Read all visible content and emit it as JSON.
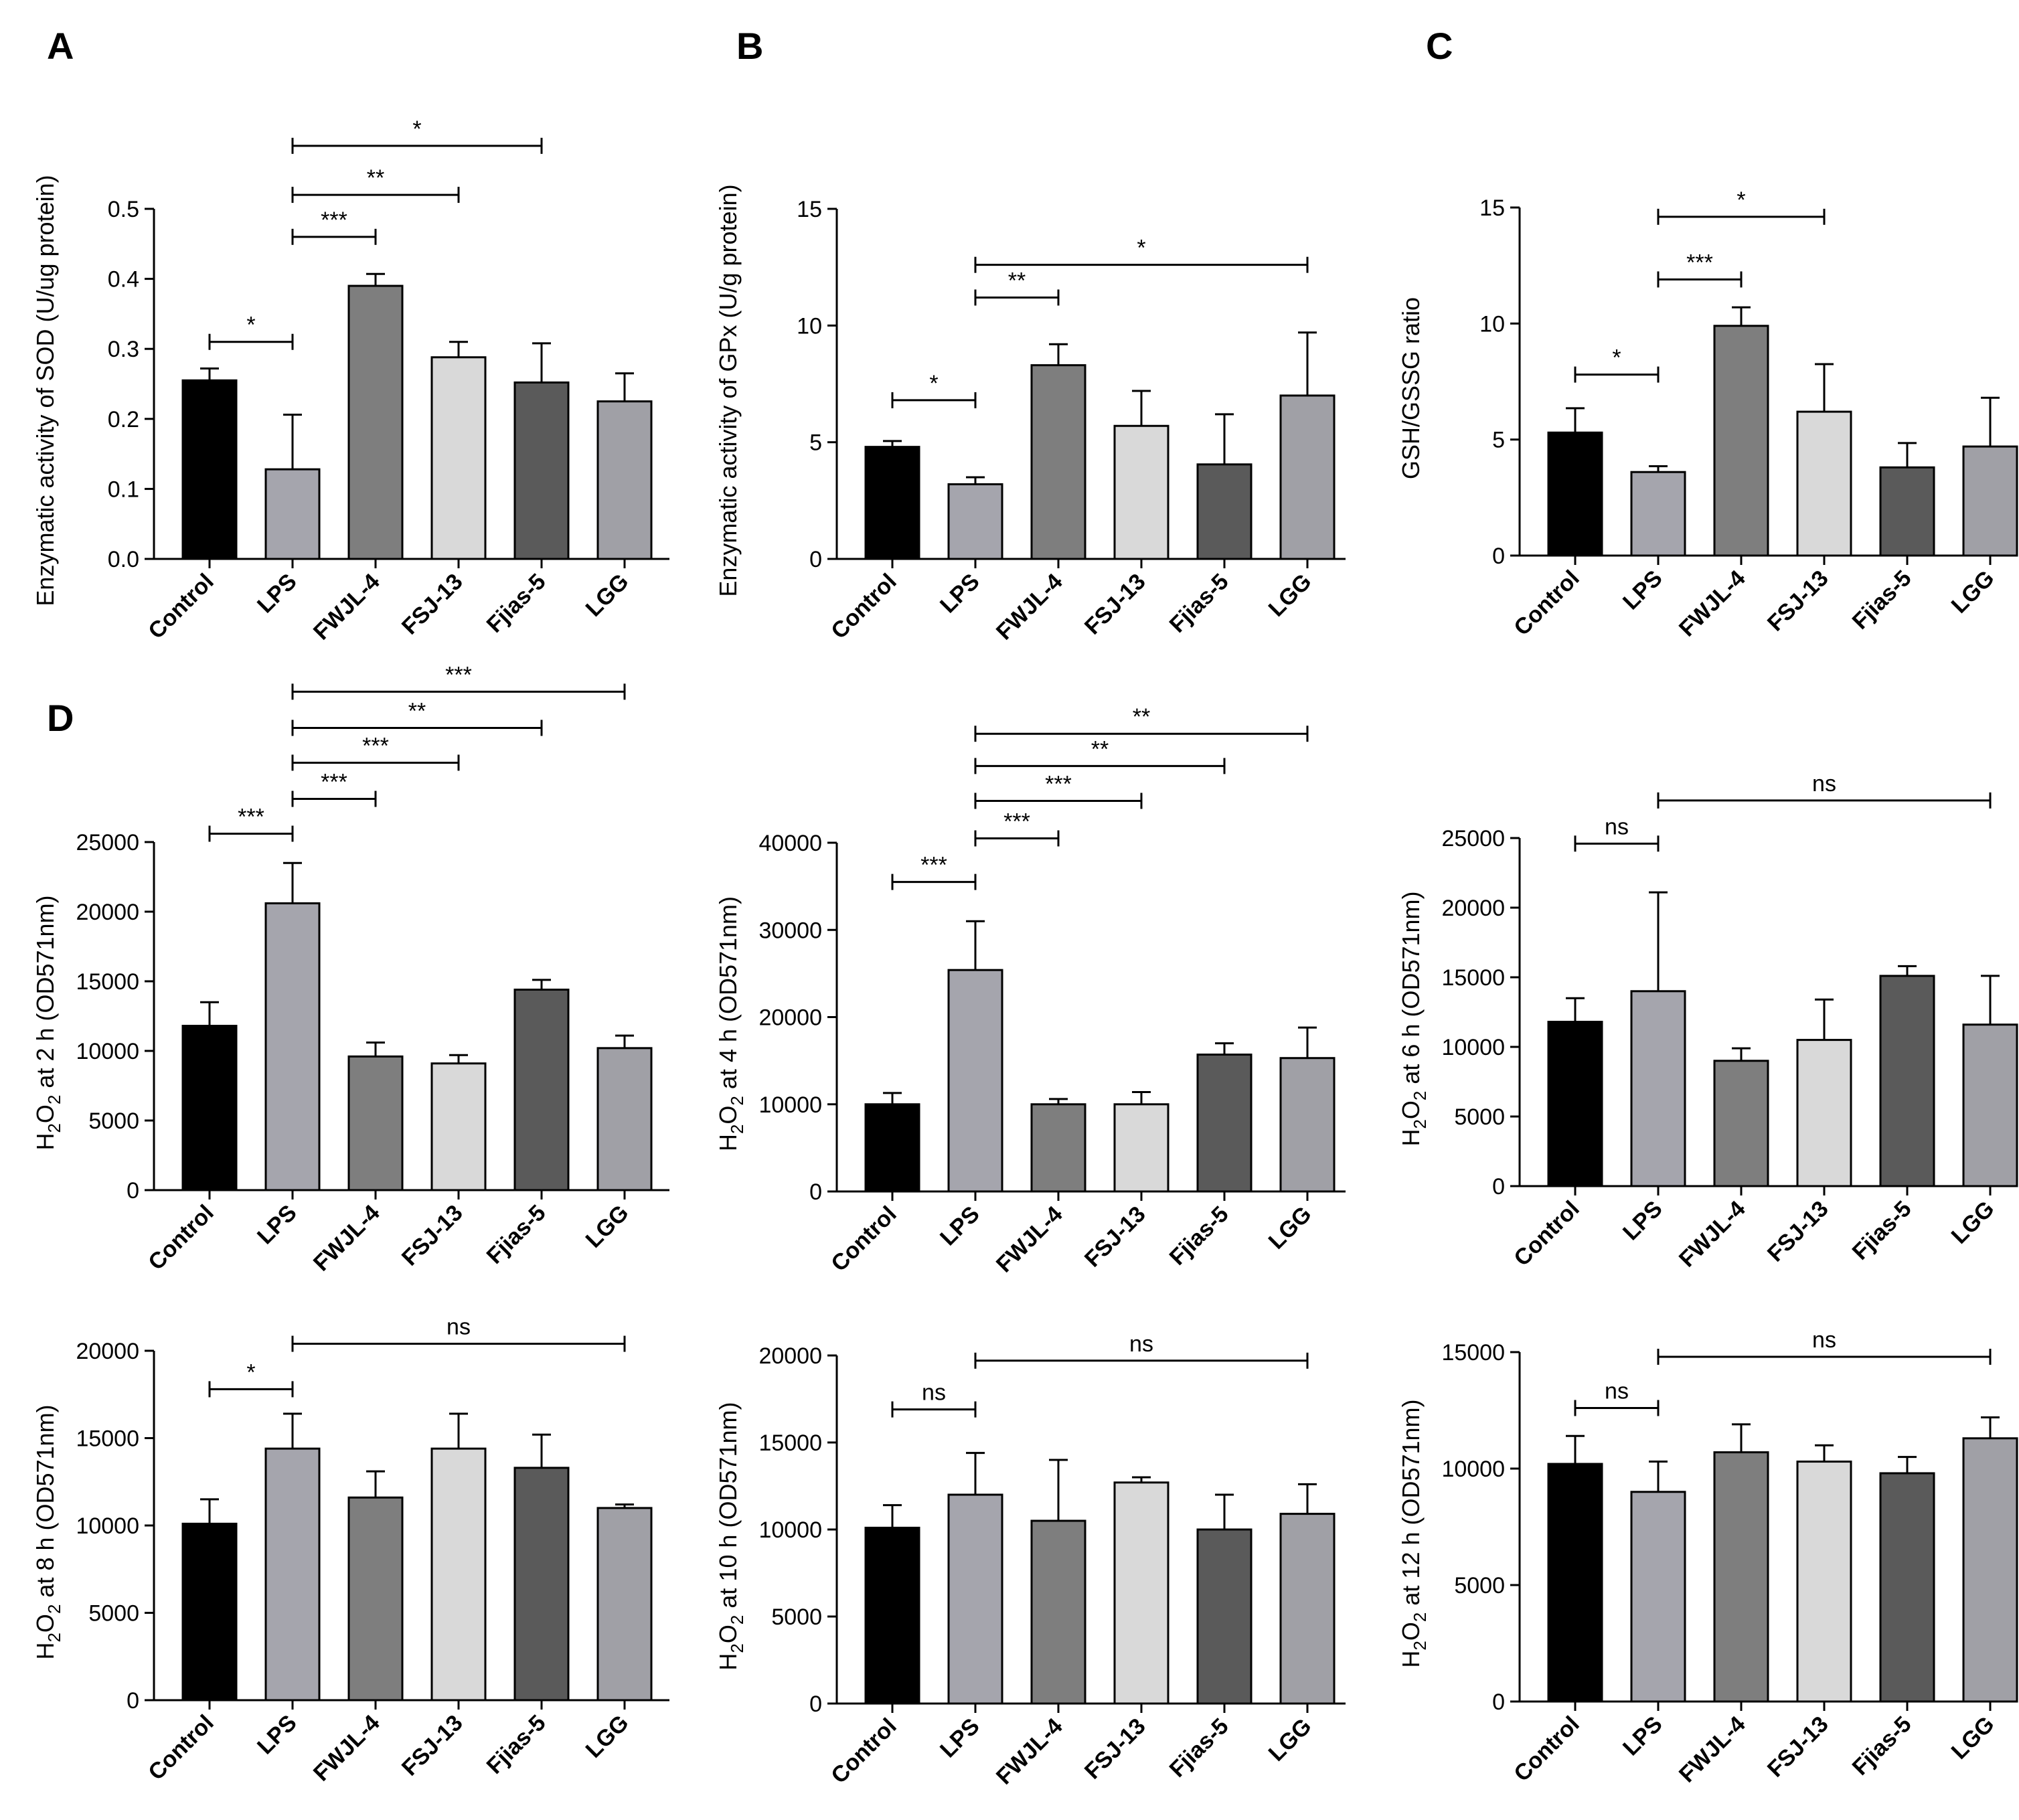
{
  "figure": {
    "panel_letters": [
      "A",
      "B",
      "C",
      "D"
    ],
    "colors": [
      "#000000",
      "#a5a5ad",
      "#7e7e7e",
      "#d9d9d9",
      "#5a5a5a",
      "#a0a0a6"
    ]
  },
  "chart_data": [
    {
      "type": "bar",
      "panel": "A",
      "ylabel": "Enzymatic activity of SOD (U/ug protein)",
      "ylim": [
        0,
        0.5
      ],
      "yticks": [
        "0.0",
        "0.1",
        "0.2",
        "0.3",
        "0.4",
        "0.5"
      ],
      "categories": [
        "Control",
        "LPS",
        "FWJL-4",
        "FSJ-13",
        "Fjias-5",
        "LGG"
      ],
      "values": [
        0.255,
        0.128,
        0.39,
        0.288,
        0.252,
        0.225
      ],
      "errors": [
        0.017,
        0.078,
        0.017,
        0.022,
        0.056,
        0.04
      ],
      "significance": [
        {
          "from": 0,
          "to": 1,
          "label": "*",
          "y": 0.31
        },
        {
          "from": 1,
          "to": 2,
          "label": "***",
          "y": 0.46
        },
        {
          "from": 1,
          "to": 3,
          "label": "**",
          "y": 0.52
        },
        {
          "from": 1,
          "to": 4,
          "label": "*",
          "y": 0.59
        }
      ]
    },
    {
      "type": "bar",
      "panel": "B",
      "ylabel": "Enzymatic activity of GPx (U/g protein)",
      "ylim": [
        0,
        15
      ],
      "yticks": [
        "0",
        "5",
        "10",
        "15"
      ],
      "categories": [
        "Control",
        "LPS",
        "FWJL-4",
        "FSJ-13",
        "Fjias-5",
        "LGG"
      ],
      "values": [
        4.8,
        3.2,
        8.3,
        5.7,
        4.05,
        7.0
      ],
      "errors": [
        0.25,
        0.3,
        0.9,
        1.5,
        2.15,
        2.7
      ],
      "significance": [
        {
          "from": 0,
          "to": 1,
          "label": "*",
          "y": 6.8
        },
        {
          "from": 1,
          "to": 2,
          "label": "**",
          "y": 11.2
        },
        {
          "from": 1,
          "to": 5,
          "label": "*",
          "y": 12.6
        }
      ]
    },
    {
      "type": "bar",
      "panel": "C",
      "ylabel": "GSH/GSSG ratio",
      "ylim": [
        0,
        15
      ],
      "yticks": [
        "0",
        "5",
        "10",
        "15"
      ],
      "categories": [
        "Control",
        "LPS",
        "FWJL-4",
        "FSJ-13",
        "Fjias-5",
        "LGG"
      ],
      "values": [
        5.3,
        3.6,
        9.9,
        6.2,
        3.8,
        4.7
      ],
      "errors": [
        1.05,
        0.25,
        0.8,
        2.05,
        1.05,
        2.1
      ],
      "significance": [
        {
          "from": 0,
          "to": 1,
          "label": "*",
          "y": 7.8
        },
        {
          "from": 1,
          "to": 2,
          "label": "***",
          "y": 11.9
        },
        {
          "from": 1,
          "to": 3,
          "label": "*",
          "y": 14.6
        }
      ]
    },
    {
      "type": "bar",
      "panel": "D1",
      "ylabel_prefix": "H",
      "ylabel_sub1": "2",
      "ylabel_mid": "O",
      "ylabel_sub2": "2",
      "ylabel_suffix": " at 2 h (OD571nm)",
      "ylim": [
        0,
        25000
      ],
      "yticks": [
        "0",
        "5000",
        "10000",
        "15000",
        "20000",
        "25000"
      ],
      "categories": [
        "Control",
        "LPS",
        "FWJL-4",
        "FSJ-13",
        "Fjias-5",
        "LGG"
      ],
      "values": [
        11800,
        20600,
        9600,
        9100,
        14400,
        10200
      ],
      "errors": [
        1700,
        2900,
        1000,
        600,
        700,
        900
      ],
      "significance": [
        {
          "from": 0,
          "to": 1,
          "label": "***",
          "y": 25600
        },
        {
          "from": 1,
          "to": 2,
          "label": "***",
          "y": 28100
        },
        {
          "from": 1,
          "to": 3,
          "label": "***",
          "y": 30700
        },
        {
          "from": 1,
          "to": 4,
          "label": "**",
          "y": 33200
        },
        {
          "from": 1,
          "to": 5,
          "label": "***",
          "y": 35800
        }
      ]
    },
    {
      "type": "bar",
      "panel": "D2",
      "ylabel_prefix": "H",
      "ylabel_sub1": "2",
      "ylabel_mid": "O",
      "ylabel_sub2": "2",
      "ylabel_suffix": " at 4 h (OD571nm)",
      "ylim": [
        0,
        40000
      ],
      "yticks": [
        "0",
        "10000",
        "20000",
        "30000",
        "40000"
      ],
      "categories": [
        "Control",
        "LPS",
        "FWJL-4",
        "FSJ-13",
        "Fjias-5",
        "LGG"
      ],
      "values": [
        10000,
        25400,
        10000,
        10000,
        15700,
        15300
      ],
      "errors": [
        1300,
        5600,
        600,
        1400,
        1300,
        3500
      ],
      "significance": [
        {
          "from": 0,
          "to": 1,
          "label": "***",
          "y": 35500
        },
        {
          "from": 1,
          "to": 2,
          "label": "***",
          "y": 40500
        },
        {
          "from": 1,
          "to": 3,
          "label": "***",
          "y": 44800
        },
        {
          "from": 1,
          "to": 4,
          "label": "**",
          "y": 48800
        },
        {
          "from": 1,
          "to": 5,
          "label": "**",
          "y": 52500
        }
      ]
    },
    {
      "type": "bar",
      "panel": "D3",
      "ylabel_prefix": "H",
      "ylabel_sub1": "2",
      "ylabel_mid": "O",
      "ylabel_sub2": "2",
      "ylabel_suffix": " at 6 h (OD571nm)",
      "ylim": [
        0,
        25000
      ],
      "yticks": [
        "0",
        "5000",
        "10000",
        "15000",
        "20000",
        "25000"
      ],
      "categories": [
        "Control",
        "LPS",
        "FWJL-4",
        "FSJ-13",
        "Fjias-5",
        "LGG"
      ],
      "values": [
        11800,
        14000,
        9000,
        10500,
        15100,
        11600
      ],
      "errors": [
        1700,
        7100,
        900,
        2900,
        700,
        3500
      ],
      "significance": [
        {
          "from": 0,
          "to": 1,
          "label": "ns",
          "y": 24600
        },
        {
          "from": 1,
          "to": 5,
          "label": "ns",
          "y": 27700
        }
      ]
    },
    {
      "type": "bar",
      "panel": "D4",
      "ylabel_prefix": "H",
      "ylabel_sub1": "2",
      "ylabel_mid": "O",
      "ylabel_sub2": "2",
      "ylabel_suffix": " at 8 h (OD571nm)",
      "ylim": [
        0,
        20000
      ],
      "yticks": [
        "0",
        "5000",
        "10000",
        "15000",
        "20000"
      ],
      "categories": [
        "Control",
        "LPS",
        "FWJL-4",
        "FSJ-13",
        "Fjias-5",
        "LGG"
      ],
      "values": [
        10100,
        14400,
        11600,
        14400,
        13300,
        11000
      ],
      "errors": [
        1400,
        2000,
        1500,
        2000,
        1900,
        200
      ],
      "significance": [
        {
          "from": 0,
          "to": 1,
          "label": "*",
          "y": 17800
        },
        {
          "from": 1,
          "to": 5,
          "label": "ns",
          "y": 20400
        }
      ]
    },
    {
      "type": "bar",
      "panel": "D5",
      "ylabel_prefix": "H",
      "ylabel_sub1": "2",
      "ylabel_mid": "O",
      "ylabel_sub2": "2",
      "ylabel_suffix": " at 10 h (OD571nm)",
      "ylim": [
        0,
        20000
      ],
      "yticks": [
        "0",
        "5000",
        "10000",
        "15000",
        "20000"
      ],
      "categories": [
        "Control",
        "LPS",
        "FWJL-4",
        "FSJ-13",
        "Fjias-5",
        "LGG"
      ],
      "values": [
        10100,
        12000,
        10500,
        12700,
        10000,
        10900
      ],
      "errors": [
        1300,
        2400,
        3500,
        300,
        2000,
        1700
      ],
      "significance": [
        {
          "from": 0,
          "to": 1,
          "label": "ns",
          "y": 16900
        },
        {
          "from": 1,
          "to": 5,
          "label": "ns",
          "y": 19700
        }
      ]
    },
    {
      "type": "bar",
      "panel": "D6",
      "ylabel_prefix": "H",
      "ylabel_sub1": "2",
      "ylabel_mid": "O",
      "ylabel_sub2": "2",
      "ylabel_suffix": " at 12 h (OD571nm)",
      "ylim": [
        0,
        15000
      ],
      "yticks": [
        "0",
        "5000",
        "10000",
        "15000"
      ],
      "categories": [
        "Control",
        "LPS",
        "FWJL-4",
        "FSJ-13",
        "Fjias-5",
        "LGG"
      ],
      "values": [
        10200,
        9000,
        10700,
        10300,
        9800,
        11300
      ],
      "errors": [
        1200,
        1300,
        1200,
        700,
        700,
        900
      ],
      "significance": [
        {
          "from": 0,
          "to": 1,
          "label": "ns",
          "y": 12600
        },
        {
          "from": 1,
          "to": 5,
          "label": "ns",
          "y": 14800
        }
      ]
    }
  ]
}
